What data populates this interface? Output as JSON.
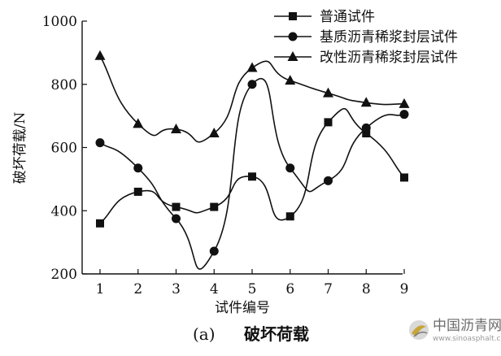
{
  "chart_data": {
    "type": "line",
    "title": "破坏荷载",
    "caption_label": "(a)",
    "xlabel": "试件编号",
    "ylabel": "破坏荷载/N",
    "x": [
      1,
      2,
      3,
      4,
      5,
      6,
      7,
      8,
      9
    ],
    "xlim": [
      0.5,
      9.5
    ],
    "ylim": [
      200,
      1000
    ],
    "yticks": [
      200,
      400,
      600,
      800,
      1000
    ],
    "grid": false,
    "legend_position": "top-right",
    "series": [
      {
        "name": "普通试件",
        "marker": "square",
        "values": [
          360,
          460,
          412,
          412,
          508,
          382,
          680,
          645,
          505
        ]
      },
      {
        "name": "基质沥青稀浆封层试件",
        "marker": "circle",
        "values": [
          615,
          535,
          375,
          272,
          800,
          535,
          495,
          662,
          705
        ]
      },
      {
        "name": "改性沥青稀浆封层试件",
        "marker": "triangle",
        "values": [
          890,
          675,
          658,
          645,
          852,
          812,
          772,
          742,
          738
        ]
      }
    ],
    "colors": {
      "line": "#111111",
      "axis": "#111111"
    }
  },
  "watermark": {
    "text": "中国沥青网",
    "url": "www.sinoasphalt.com",
    "accent_color": "#c8a53a"
  }
}
